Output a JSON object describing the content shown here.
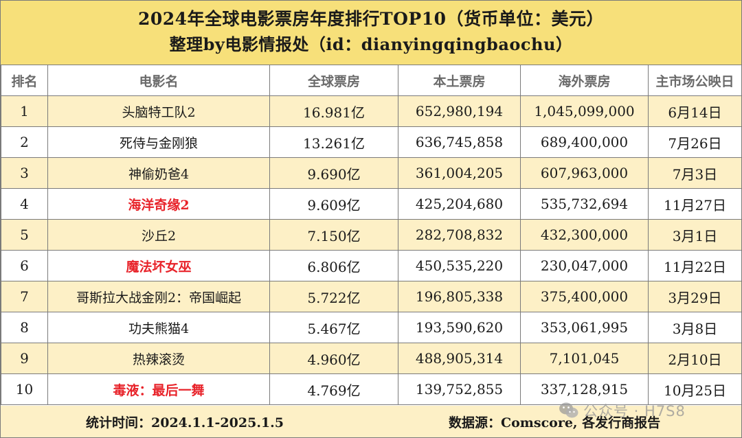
{
  "title": {
    "line1": "2024年全球电影票房年度排行TOP10（货币单位：美元）",
    "line2": "整理by电影情报处（id：dianyingqingbaochu）"
  },
  "headers": [
    "排名",
    "电影名",
    "全球票房",
    "本土票房",
    "海外票房",
    "主市场公映日"
  ],
  "rows": [
    {
      "rank": "1",
      "title": "头脑特工队2",
      "global": "16.981亿",
      "domestic": "652,980,194",
      "overseas": "1,045,099,000",
      "release": "6月14日",
      "highlight": false
    },
    {
      "rank": "2",
      "title": "死侍与金刚狼",
      "global": "13.261亿",
      "domestic": "636,745,858",
      "overseas": "689,400,000",
      "release": "7月26日",
      "highlight": false
    },
    {
      "rank": "3",
      "title": "神偷奶爸4",
      "global": "9.690亿",
      "domestic": "361,004,205",
      "overseas": "607,963,000",
      "release": "7月3日",
      "highlight": false
    },
    {
      "rank": "4",
      "title": "海洋奇缘2",
      "global": "9.609亿",
      "domestic": "425,204,680",
      "overseas": "535,732,694",
      "release": "11月27日",
      "highlight": true
    },
    {
      "rank": "5",
      "title": "沙丘2",
      "global": "7.150亿",
      "domestic": "282,708,832",
      "overseas": "432,300,000",
      "release": "3月1日",
      "highlight": false
    },
    {
      "rank": "6",
      "title": "魔法坏女巫",
      "global": "6.806亿",
      "domestic": "450,535,220",
      "overseas": "230,047,000",
      "release": "11月22日",
      "highlight": true
    },
    {
      "rank": "7",
      "title": "哥斯拉大战金刚2：帝国崛起",
      "global": "5.722亿",
      "domestic": "196,805,338",
      "overseas": "375,400,000",
      "release": "3月29日",
      "highlight": false
    },
    {
      "rank": "8",
      "title": "功夫熊猫4",
      "global": "5.467亿",
      "domestic": "193,590,620",
      "overseas": "353,061,995",
      "release": "3月8日",
      "highlight": false
    },
    {
      "rank": "9",
      "title": "热辣滚烫",
      "global": "4.960亿",
      "domestic": "488,905,314",
      "overseas": "7,101,045",
      "release": "2月10日",
      "highlight": false
    },
    {
      "rank": "10",
      "title": "毒液：最后一舞",
      "global": "4.769亿",
      "domestic": "139,752,855",
      "overseas": "337,128,915",
      "release": "10月25日",
      "highlight": true
    }
  ],
  "footer": {
    "stat_period": "统计时间：2024.1.1-2025.1.5",
    "source": "数据源：Comscore, 各发行商报告"
  },
  "watermark": {
    "text": "公众号 · H7S8",
    "icon": "wechat-icon"
  },
  "colors": {
    "title_bg": "#f7e07a",
    "row_highlight_bg": "#fdf0c6",
    "red_title": "#e8232a"
  }
}
